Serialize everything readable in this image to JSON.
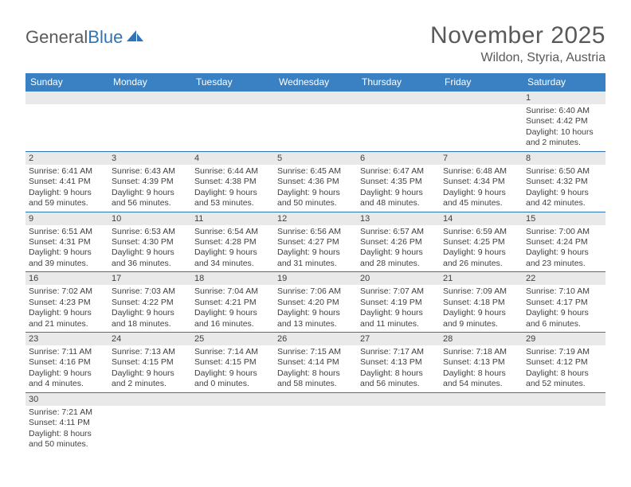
{
  "logo": {
    "text1": "General",
    "text2": "Blue"
  },
  "title": "November 2025",
  "location": "Wildon, Styria, Austria",
  "colors": {
    "header_bg": "#3a81c4",
    "rule": "#2f75b5",
    "daynum_bg": "#e9e9e9",
    "text": "#404040",
    "title_text": "#595959"
  },
  "dow": [
    "Sunday",
    "Monday",
    "Tuesday",
    "Wednesday",
    "Thursday",
    "Friday",
    "Saturday"
  ],
  "weeks": [
    [
      null,
      null,
      null,
      null,
      null,
      null,
      {
        "n": "1",
        "sr": "Sunrise: 6:40 AM",
        "ss": "Sunset: 4:42 PM",
        "d1": "Daylight: 10 hours",
        "d2": "and 2 minutes."
      }
    ],
    [
      {
        "n": "2",
        "sr": "Sunrise: 6:41 AM",
        "ss": "Sunset: 4:41 PM",
        "d1": "Daylight: 9 hours",
        "d2": "and 59 minutes."
      },
      {
        "n": "3",
        "sr": "Sunrise: 6:43 AM",
        "ss": "Sunset: 4:39 PM",
        "d1": "Daylight: 9 hours",
        "d2": "and 56 minutes."
      },
      {
        "n": "4",
        "sr": "Sunrise: 6:44 AM",
        "ss": "Sunset: 4:38 PM",
        "d1": "Daylight: 9 hours",
        "d2": "and 53 minutes."
      },
      {
        "n": "5",
        "sr": "Sunrise: 6:45 AM",
        "ss": "Sunset: 4:36 PM",
        "d1": "Daylight: 9 hours",
        "d2": "and 50 minutes."
      },
      {
        "n": "6",
        "sr": "Sunrise: 6:47 AM",
        "ss": "Sunset: 4:35 PM",
        "d1": "Daylight: 9 hours",
        "d2": "and 48 minutes."
      },
      {
        "n": "7",
        "sr": "Sunrise: 6:48 AM",
        "ss": "Sunset: 4:34 PM",
        "d1": "Daylight: 9 hours",
        "d2": "and 45 minutes."
      },
      {
        "n": "8",
        "sr": "Sunrise: 6:50 AM",
        "ss": "Sunset: 4:32 PM",
        "d1": "Daylight: 9 hours",
        "d2": "and 42 minutes."
      }
    ],
    [
      {
        "n": "9",
        "sr": "Sunrise: 6:51 AM",
        "ss": "Sunset: 4:31 PM",
        "d1": "Daylight: 9 hours",
        "d2": "and 39 minutes."
      },
      {
        "n": "10",
        "sr": "Sunrise: 6:53 AM",
        "ss": "Sunset: 4:30 PM",
        "d1": "Daylight: 9 hours",
        "d2": "and 36 minutes."
      },
      {
        "n": "11",
        "sr": "Sunrise: 6:54 AM",
        "ss": "Sunset: 4:28 PM",
        "d1": "Daylight: 9 hours",
        "d2": "and 34 minutes."
      },
      {
        "n": "12",
        "sr": "Sunrise: 6:56 AM",
        "ss": "Sunset: 4:27 PM",
        "d1": "Daylight: 9 hours",
        "d2": "and 31 minutes."
      },
      {
        "n": "13",
        "sr": "Sunrise: 6:57 AM",
        "ss": "Sunset: 4:26 PM",
        "d1": "Daylight: 9 hours",
        "d2": "and 28 minutes."
      },
      {
        "n": "14",
        "sr": "Sunrise: 6:59 AM",
        "ss": "Sunset: 4:25 PM",
        "d1": "Daylight: 9 hours",
        "d2": "and 26 minutes."
      },
      {
        "n": "15",
        "sr": "Sunrise: 7:00 AM",
        "ss": "Sunset: 4:24 PM",
        "d1": "Daylight: 9 hours",
        "d2": "and 23 minutes."
      }
    ],
    [
      {
        "n": "16",
        "sr": "Sunrise: 7:02 AM",
        "ss": "Sunset: 4:23 PM",
        "d1": "Daylight: 9 hours",
        "d2": "and 21 minutes."
      },
      {
        "n": "17",
        "sr": "Sunrise: 7:03 AM",
        "ss": "Sunset: 4:22 PM",
        "d1": "Daylight: 9 hours",
        "d2": "and 18 minutes."
      },
      {
        "n": "18",
        "sr": "Sunrise: 7:04 AM",
        "ss": "Sunset: 4:21 PM",
        "d1": "Daylight: 9 hours",
        "d2": "and 16 minutes."
      },
      {
        "n": "19",
        "sr": "Sunrise: 7:06 AM",
        "ss": "Sunset: 4:20 PM",
        "d1": "Daylight: 9 hours",
        "d2": "and 13 minutes."
      },
      {
        "n": "20",
        "sr": "Sunrise: 7:07 AM",
        "ss": "Sunset: 4:19 PM",
        "d1": "Daylight: 9 hours",
        "d2": "and 11 minutes."
      },
      {
        "n": "21",
        "sr": "Sunrise: 7:09 AM",
        "ss": "Sunset: 4:18 PM",
        "d1": "Daylight: 9 hours",
        "d2": "and 9 minutes."
      },
      {
        "n": "22",
        "sr": "Sunrise: 7:10 AM",
        "ss": "Sunset: 4:17 PM",
        "d1": "Daylight: 9 hours",
        "d2": "and 6 minutes."
      }
    ],
    [
      {
        "n": "23",
        "sr": "Sunrise: 7:11 AM",
        "ss": "Sunset: 4:16 PM",
        "d1": "Daylight: 9 hours",
        "d2": "and 4 minutes."
      },
      {
        "n": "24",
        "sr": "Sunrise: 7:13 AM",
        "ss": "Sunset: 4:15 PM",
        "d1": "Daylight: 9 hours",
        "d2": "and 2 minutes."
      },
      {
        "n": "25",
        "sr": "Sunrise: 7:14 AM",
        "ss": "Sunset: 4:15 PM",
        "d1": "Daylight: 9 hours",
        "d2": "and 0 minutes."
      },
      {
        "n": "26",
        "sr": "Sunrise: 7:15 AM",
        "ss": "Sunset: 4:14 PM",
        "d1": "Daylight: 8 hours",
        "d2": "and 58 minutes."
      },
      {
        "n": "27",
        "sr": "Sunrise: 7:17 AM",
        "ss": "Sunset: 4:13 PM",
        "d1": "Daylight: 8 hours",
        "d2": "and 56 minutes."
      },
      {
        "n": "28",
        "sr": "Sunrise: 7:18 AM",
        "ss": "Sunset: 4:13 PM",
        "d1": "Daylight: 8 hours",
        "d2": "and 54 minutes."
      },
      {
        "n": "29",
        "sr": "Sunrise: 7:19 AM",
        "ss": "Sunset: 4:12 PM",
        "d1": "Daylight: 8 hours",
        "d2": "and 52 minutes."
      }
    ],
    [
      {
        "n": "30",
        "sr": "Sunrise: 7:21 AM",
        "ss": "Sunset: 4:11 PM",
        "d1": "Daylight: 8 hours",
        "d2": "and 50 minutes."
      },
      null,
      null,
      null,
      null,
      null,
      null
    ]
  ]
}
